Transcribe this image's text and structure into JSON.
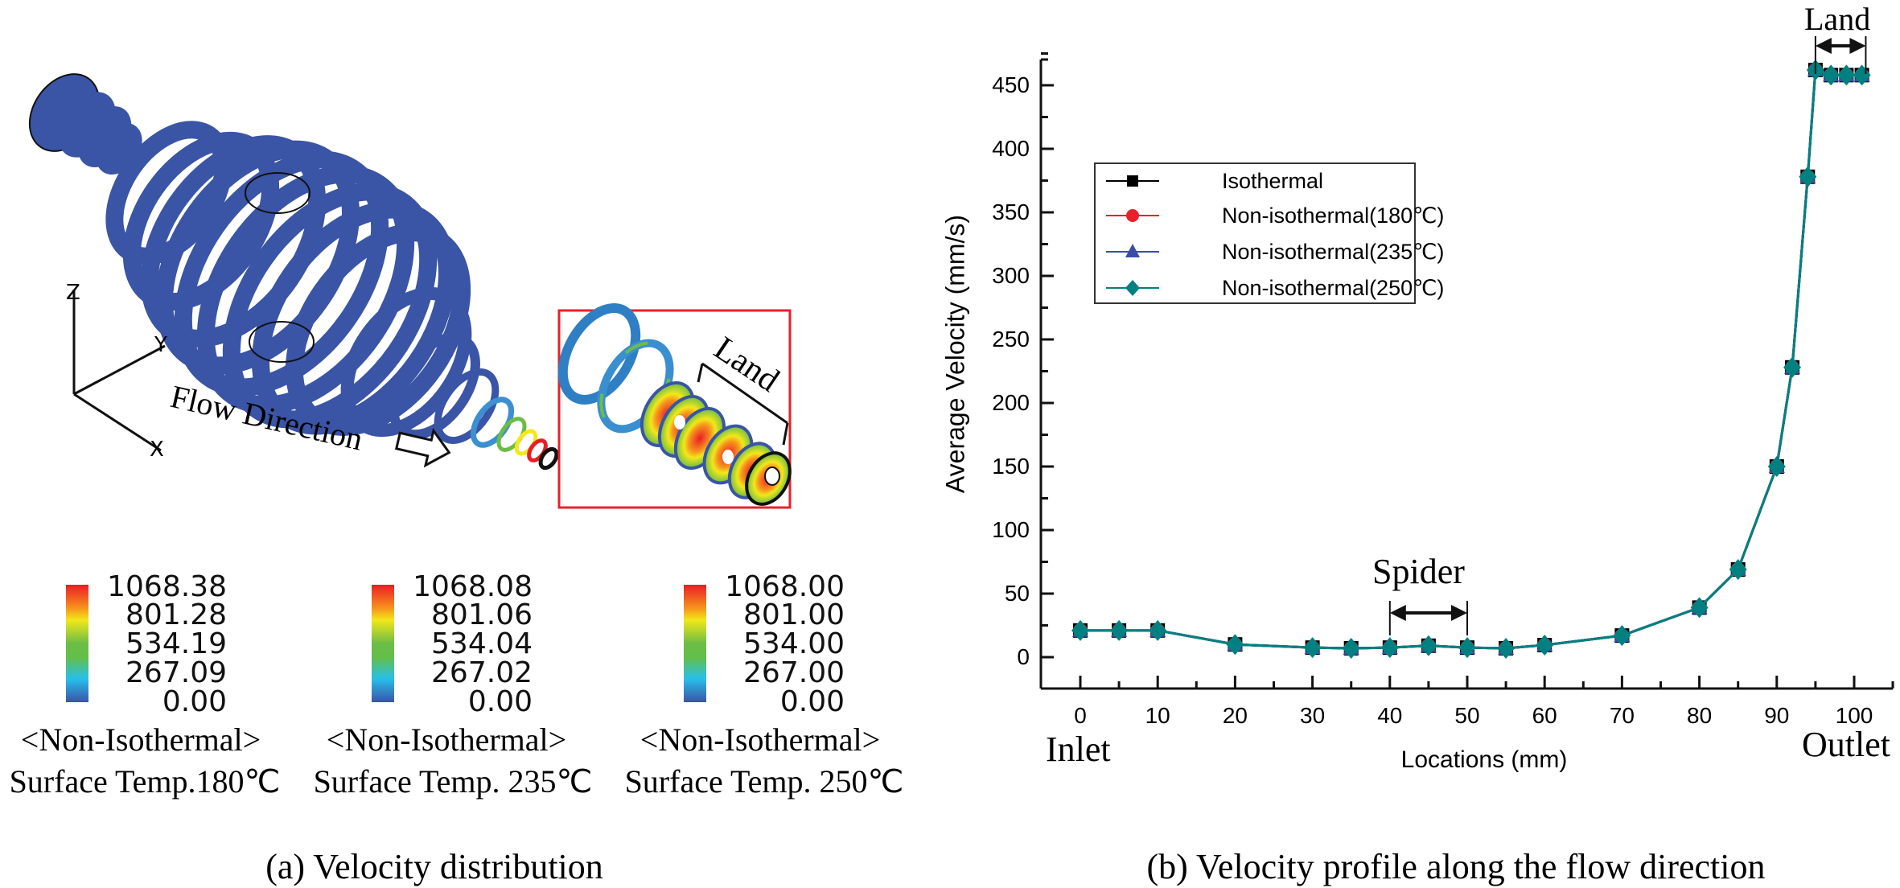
{
  "panel_a": {
    "caption": "(a) Velocity distribution",
    "flow_label": "Flow Direction",
    "land_label": "Land",
    "axes_triad": {
      "z": "Z",
      "y": "Y",
      "x": "X"
    },
    "mesh_color": "#3a54a6",
    "inset_border_color": "#e8202a",
    "colorbars": [
      {
        "labels": [
          "1068.38",
          "801.28",
          "534.19",
          "267.09",
          "0.00"
        ],
        "caption_line1": "<Non-Isothermal>",
        "caption_line2": "Surface Temp.180℃"
      },
      {
        "labels": [
          "1068.08",
          "801.06",
          "534.04",
          "267.02",
          "0.00"
        ],
        "caption_line1": "<Non-Isothermal>",
        "caption_line2": "Surface Temp. 235℃"
      },
      {
        "labels": [
          "1068.00",
          "801.00",
          "534.00",
          "267.00",
          "0.00"
        ],
        "caption_line1": "<Non-Isothermal>",
        "caption_line2": "Surface Temp. 250℃"
      }
    ],
    "colormap": [
      "#ea1d26",
      "#f7941d",
      "#f2e81a",
      "#6cbd45",
      "#62bf4a",
      "#27c0ea",
      "#3a54a6"
    ]
  },
  "panel_b": {
    "caption": "(b) Velocity profile along the flow direction",
    "inlet_label": "Inlet",
    "outlet_label": "Outlet",
    "spider_label": "Spider",
    "land_label": "Land"
  },
  "chart_data": {
    "type": "line",
    "title": "",
    "xlabel": "Locations (mm)",
    "ylabel": "Average Velocity (mm/s)",
    "xlim": [
      -5,
      105
    ],
    "ylim": [
      -24,
      475
    ],
    "xticks": [
      0,
      10,
      20,
      30,
      40,
      50,
      60,
      70,
      80,
      90,
      100
    ],
    "yticks": [
      0,
      50,
      100,
      150,
      200,
      250,
      300,
      350,
      400,
      450
    ],
    "legend_position": "upper-left",
    "grid": false,
    "annotations": [
      {
        "text": "Spider",
        "x_range": [
          40,
          50
        ]
      },
      {
        "text": "Land",
        "x_range": [
          95,
          101.5
        ]
      }
    ],
    "x": [
      0,
      5,
      10,
      20,
      30,
      35,
      40,
      45,
      50,
      55,
      60,
      70,
      80,
      85,
      90,
      92,
      94,
      95,
      97,
      99,
      101
    ],
    "series": [
      {
        "name": "Isothermal",
        "color": "#000000",
        "marker": "square",
        "values": [
          21,
          21,
          21,
          10,
          7.5,
          7,
          7.5,
          9,
          7.5,
          7,
          9.5,
          17,
          39,
          69,
          150,
          228,
          378,
          462,
          458,
          458,
          458
        ]
      },
      {
        "name": "Non-isothermal(180℃)",
        "color": "#e8202a",
        "marker": "circle",
        "values": [
          21,
          21,
          21,
          10,
          7.5,
          7,
          7.5,
          9,
          7.5,
          7,
          9.5,
          17,
          39,
          69,
          150,
          228,
          378,
          462,
          458,
          458,
          458
        ]
      },
      {
        "name": "Non-isothermal(235℃)",
        "color": "#3a4fa0",
        "marker": "triangle",
        "values": [
          21,
          21,
          21,
          10,
          7.5,
          7,
          7.5,
          9,
          7.5,
          7,
          9.5,
          17,
          39,
          69,
          150,
          228,
          378,
          462,
          458,
          458,
          458
        ]
      },
      {
        "name": "Non-isothermal(250℃)",
        "color": "#008080",
        "marker": "diamond",
        "values": [
          21,
          21,
          21,
          10,
          7.5,
          7,
          7.5,
          9,
          7.5,
          7,
          9.5,
          17,
          39,
          69,
          150,
          228,
          378,
          462,
          458,
          458,
          458
        ]
      }
    ]
  }
}
